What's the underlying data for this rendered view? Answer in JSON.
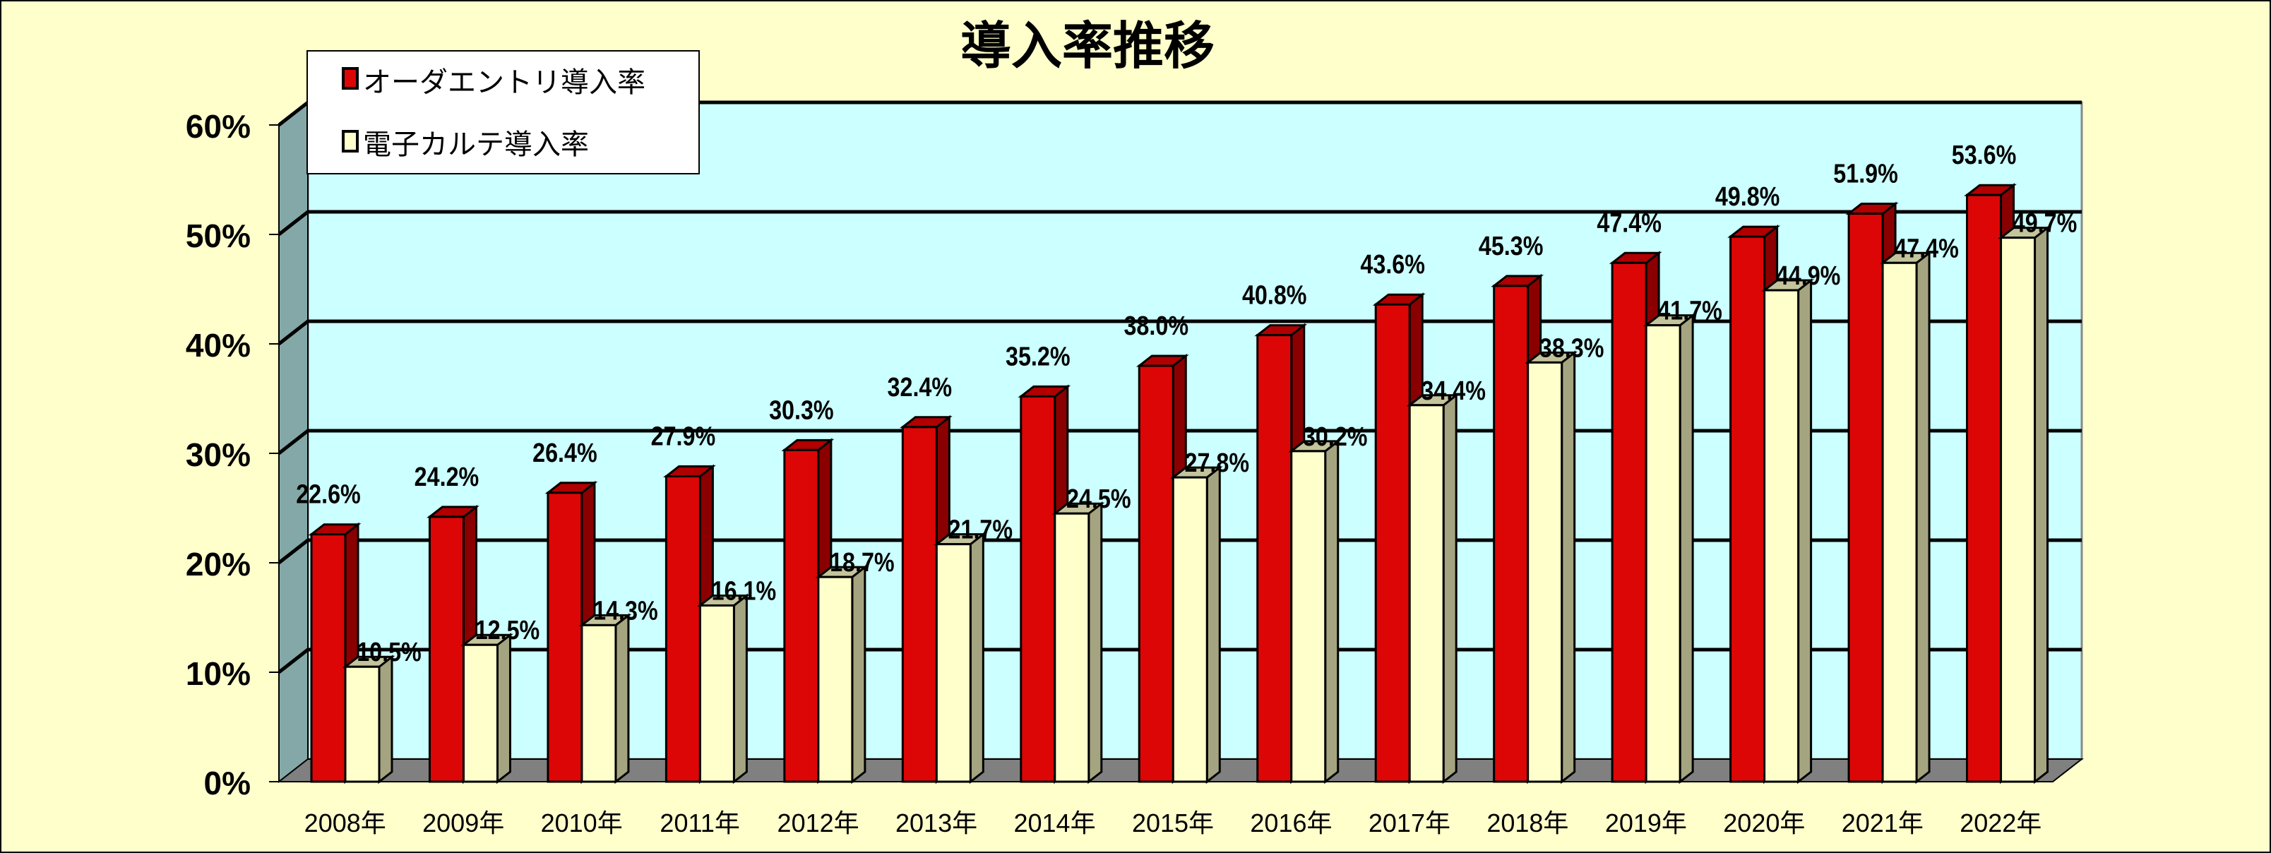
{
  "chart_data": {
    "type": "bar",
    "title": "導入率推移",
    "xlabel": "",
    "ylabel": "",
    "ylim": [
      0,
      60
    ],
    "yticks": [
      "0%",
      "10%",
      "20%",
      "30%",
      "40%",
      "50%",
      "60%"
    ],
    "grid": true,
    "legend_position": "top-left",
    "categories": [
      "2008年",
      "2009年",
      "2010年",
      "2011年",
      "2012年",
      "2013年",
      "2014年",
      "2015年",
      "2016年",
      "2017年",
      "2018年",
      "2019年",
      "2020年",
      "2021年",
      "2022年"
    ],
    "series": [
      {
        "name": "オーダエントリ導入率",
        "color": "#dd0606",
        "values": [
          22.6,
          24.2,
          26.4,
          27.9,
          30.3,
          32.4,
          35.2,
          38.0,
          40.8,
          43.6,
          45.3,
          47.4,
          49.8,
          51.9,
          53.6
        ],
        "labels": [
          "22.6%",
          "24.2%",
          "26.4%",
          "27.9%",
          "30.3%",
          "32.4%",
          "35.2%",
          "38.0%",
          "40.8%",
          "43.6%",
          "45.3%",
          "47.4%",
          "49.8%",
          "51.9%",
          "53.6%"
        ]
      },
      {
        "name": "電子カルテ導入率",
        "color": "#ffffcc",
        "values": [
          10.5,
          12.5,
          14.3,
          16.1,
          18.7,
          21.7,
          24.5,
          27.8,
          30.2,
          34.4,
          38.3,
          41.7,
          44.9,
          47.4,
          49.7
        ],
        "labels": [
          "10.5%",
          "12.5%",
          "14.3%",
          "16.1%",
          "18.7%",
          "21.7%",
          "24.5%",
          "27.8%",
          "30.2%",
          "34.4%",
          "38.3%",
          "41.7%",
          "44.9%",
          "47.4%",
          "49.7%"
        ]
      }
    ]
  }
}
